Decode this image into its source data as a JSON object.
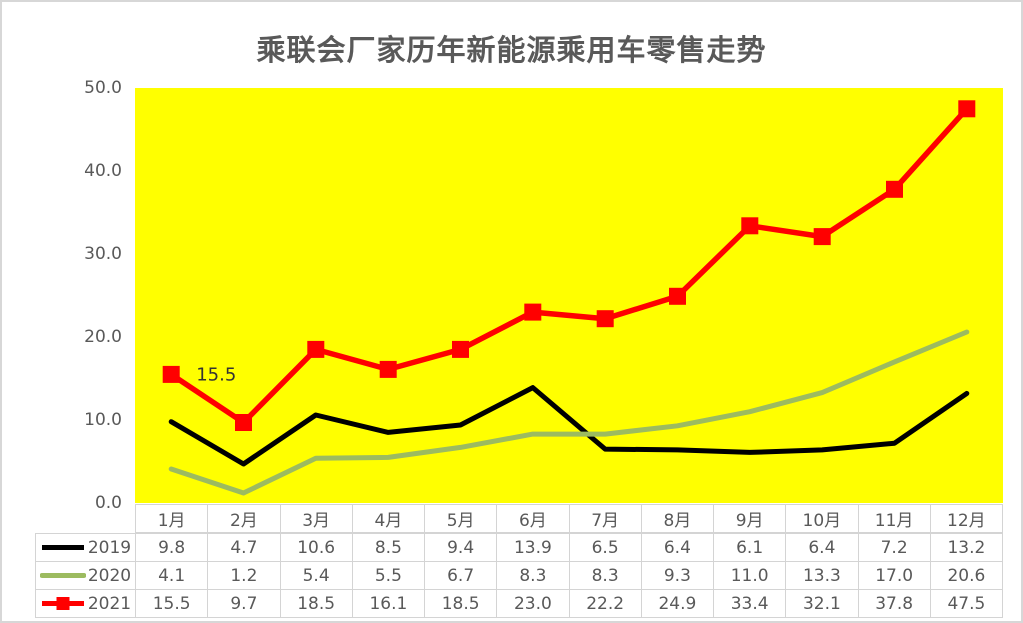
{
  "title": "乘联会厂家历年新能源乘用车零售走势",
  "chart_data": {
    "type": "line",
    "title": "乘联会厂家历年新能源乘用车零售走势",
    "xlabel": "",
    "ylabel": "",
    "ylim": [
      0,
      50
    ],
    "y_ticks": [
      "0.0",
      "10.0",
      "20.0",
      "30.0",
      "40.0",
      "50.0"
    ],
    "grid": false,
    "plot_background_color": "#FFFF00",
    "legend_position": "table-left",
    "categories": [
      "1月",
      "2月",
      "3月",
      "4月",
      "5月",
      "6月",
      "7月",
      "8月",
      "9月",
      "10月",
      "11月",
      "12月"
    ],
    "series": [
      {
        "name": "2019",
        "color": "#000000",
        "marker": "none",
        "values": [
          9.8,
          4.7,
          10.6,
          8.5,
          9.4,
          13.9,
          6.5,
          6.4,
          6.1,
          6.4,
          7.2,
          13.2
        ]
      },
      {
        "name": "2020",
        "color": "#9CBB60",
        "marker": "none",
        "values": [
          4.1,
          1.2,
          5.4,
          5.5,
          6.7,
          8.3,
          8.3,
          9.3,
          11.0,
          13.3,
          17.0,
          20.6
        ]
      },
      {
        "name": "2021",
        "color": "#FF0000",
        "marker": "square",
        "values": [
          15.5,
          9.7,
          18.5,
          16.1,
          18.5,
          23.0,
          22.2,
          24.9,
          33.4,
          32.1,
          37.8,
          47.5
        ]
      }
    ],
    "annotation": {
      "text": "15.5",
      "series": "2021",
      "point": 0,
      "color": "#333333"
    }
  }
}
